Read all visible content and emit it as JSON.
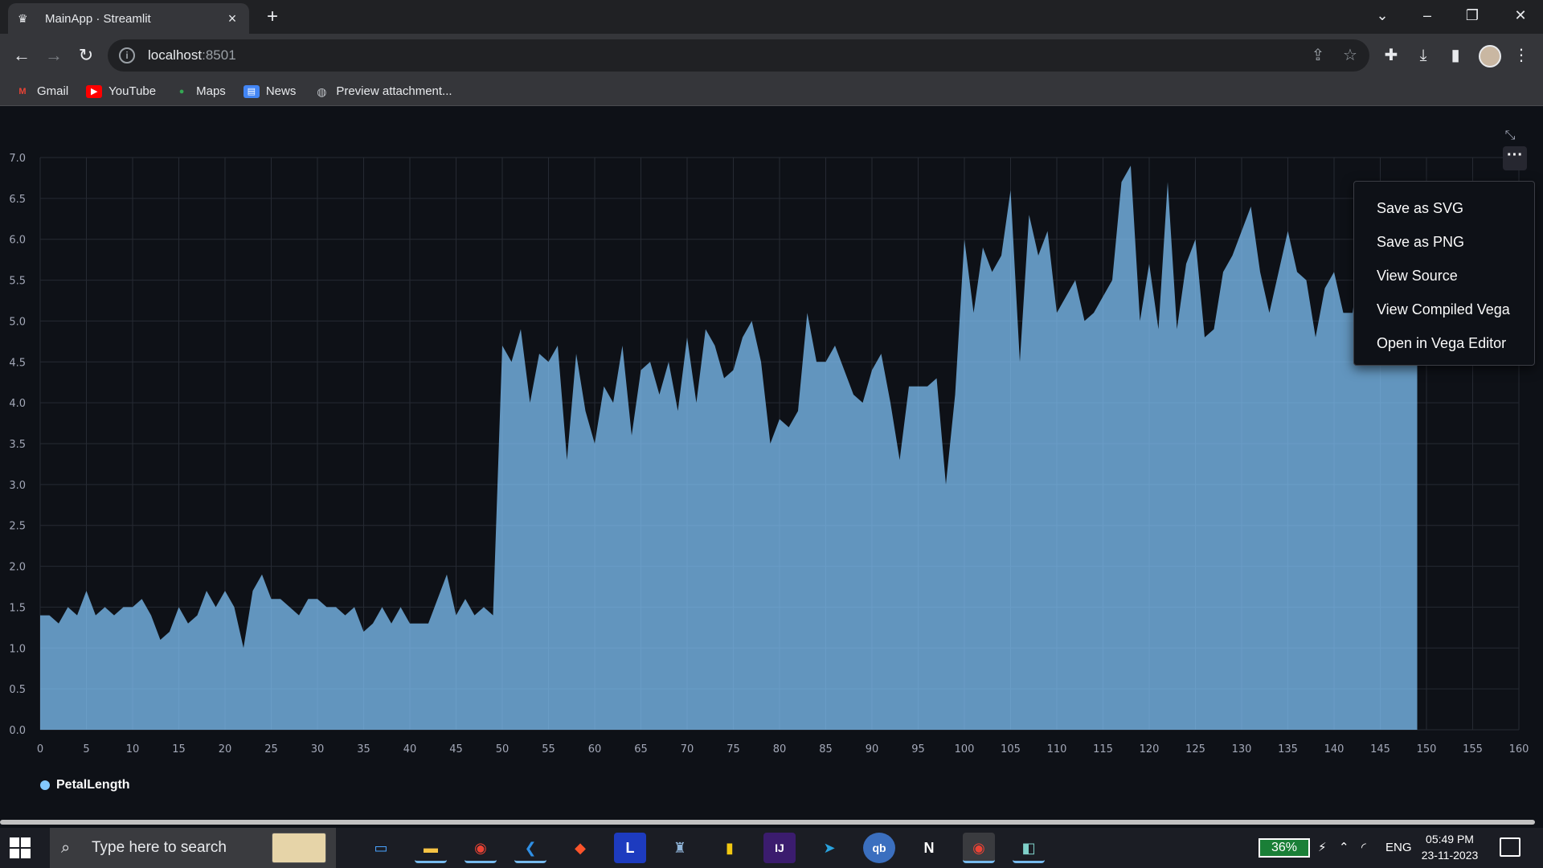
{
  "browser": {
    "tab_title": "MainApp · Streamlit",
    "url_host": "localhost",
    "url_port": ":8501",
    "bookmarks": [
      "Gmail",
      "YouTube",
      "Maps",
      "News",
      "Preview attachment..."
    ]
  },
  "chart_menu": {
    "items": [
      "Save as SVG",
      "Save as PNG",
      "View Source",
      "View Compiled Vega",
      "Open in Vega Editor"
    ]
  },
  "chart_data": {
    "type": "area",
    "series": [
      {
        "name": "PetalLength",
        "color": "#83c9ff",
        "values": [
          1.4,
          1.4,
          1.3,
          1.5,
          1.4,
          1.7,
          1.4,
          1.5,
          1.4,
          1.5,
          1.5,
          1.6,
          1.4,
          1.1,
          1.2,
          1.5,
          1.3,
          1.4,
          1.7,
          1.5,
          1.7,
          1.5,
          1.0,
          1.7,
          1.9,
          1.6,
          1.6,
          1.5,
          1.4,
          1.6,
          1.6,
          1.5,
          1.5,
          1.4,
          1.5,
          1.2,
          1.3,
          1.5,
          1.3,
          1.5,
          1.3,
          1.3,
          1.3,
          1.6,
          1.9,
          1.4,
          1.6,
          1.4,
          1.5,
          1.4,
          4.7,
          4.5,
          4.9,
          4.0,
          4.6,
          4.5,
          4.7,
          3.3,
          4.6,
          3.9,
          3.5,
          4.2,
          4.0,
          4.7,
          3.6,
          4.4,
          4.5,
          4.1,
          4.5,
          3.9,
          4.8,
          4.0,
          4.9,
          4.7,
          4.3,
          4.4,
          4.8,
          5.0,
          4.5,
          3.5,
          3.8,
          3.7,
          3.9,
          5.1,
          4.5,
          4.5,
          4.7,
          4.4,
          4.1,
          4.0,
          4.4,
          4.6,
          4.0,
          3.3,
          4.2,
          4.2,
          4.2,
          4.3,
          3.0,
          4.1,
          6.0,
          5.1,
          5.9,
          5.6,
          5.8,
          6.6,
          4.5,
          6.3,
          5.8,
          6.1,
          5.1,
          5.3,
          5.5,
          5.0,
          5.1,
          5.3,
          5.5,
          6.7,
          6.9,
          5.0,
          5.7,
          4.9,
          6.7,
          4.9,
          5.7,
          6.0,
          4.8,
          4.9,
          5.6,
          5.8,
          6.1,
          6.4,
          5.6,
          5.1,
          5.6,
          6.1,
          5.6,
          5.5,
          4.8,
          5.4,
          5.6,
          5.1,
          5.1,
          5.9,
          5.7,
          5.2,
          5.0,
          5.2,
          5.4,
          5.1
        ]
      }
    ],
    "xlim": [
      0,
      160
    ],
    "ylim": [
      0,
      7.0
    ],
    "x_ticks": [
      0,
      5,
      10,
      15,
      20,
      25,
      30,
      35,
      40,
      45,
      50,
      55,
      60,
      65,
      70,
      75,
      80,
      85,
      90,
      95,
      100,
      105,
      110,
      115,
      120,
      125,
      130,
      135,
      140,
      145,
      150,
      155,
      160
    ],
    "y_ticks": [
      "0.0",
      "0.5",
      "1.0",
      "1.5",
      "2.0",
      "2.5",
      "3.0",
      "3.5",
      "4.0",
      "4.5",
      "5.0",
      "5.5",
      "6.0",
      "6.5",
      "7.0"
    ],
    "grid": true,
    "legend": "bottom-left"
  },
  "taskbar": {
    "search_placeholder": "Type here to search",
    "battery": "36%",
    "language": "ENG",
    "time": "05:49 PM",
    "date": "23-11-2023"
  }
}
